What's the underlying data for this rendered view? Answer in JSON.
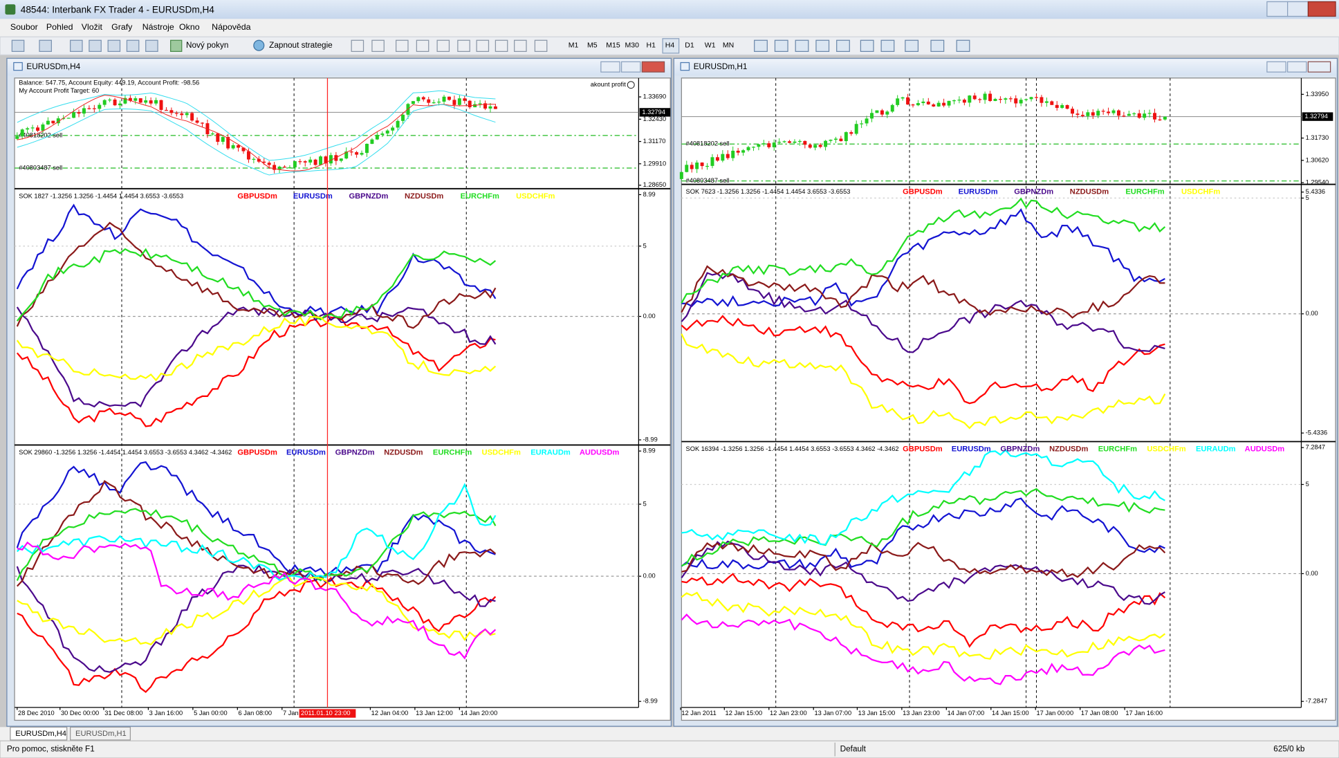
{
  "window": {
    "title": "48544: Interbank FX Trader 4 - EURUSDm,H4"
  },
  "menu": [
    "Soubor",
    "Pohled",
    "Vložit",
    "Grafy",
    "Nástroje",
    "Okno",
    "Nápověda"
  ],
  "toolbar": {
    "new_order": "Nový pokyn",
    "strategy": "Zapnout strategie",
    "timeframes": [
      "M1",
      "M5",
      "M15",
      "M30",
      "H1",
      "H4",
      "D1",
      "W1",
      "MN"
    ]
  },
  "charts": [
    {
      "title": "EURUSDm,H4",
      "price_panel": {
        "account": [
          "Balance: 547.75, Account Equity: 449.19, Account Profit: -98.56",
          "My Account Profit Target: 60"
        ],
        "indicator": "akount profit",
        "orders": [
          "#40818202 sell",
          "#40803487 sell"
        ],
        "scale": [
          "1.33690",
          "1.32430",
          "1.31170",
          "1.29910",
          "1.28650"
        ],
        "current": "1.32794"
      },
      "indicators": [
        {
          "header": "SOK 1827 -1.3256 1.3256 -1.4454 1.4454 3.6553 -3.6553",
          "legend": [
            {
              "name": "GBPUSDm",
              "color": "#ff0000"
            },
            {
              "name": "EURUSDm",
              "color": "#1414d2"
            },
            {
              "name": "GBPNZDm",
              "color": "#4b0a8c"
            },
            {
              "name": "NZDUSDm",
              "color": "#8b1a1a"
            },
            {
              "name": "EURCHFm",
              "color": "#22dd22"
            },
            {
              "name": "USDCHFm",
              "color": "#ffff00"
            }
          ],
          "scale": [
            "8.99",
            "5",
            "0.00",
            "-8.99"
          ]
        },
        {
          "header": "SOK 29860 -1.3256 1.3256 -1.4454 1.4454 3.6553 -3.6553 4.3462 -4.3462",
          "legend": [
            {
              "name": "GBPUSDm",
              "color": "#ff0000"
            },
            {
              "name": "EURUSDm",
              "color": "#1414d2"
            },
            {
              "name": "GBPNZDm",
              "color": "#4b0a8c"
            },
            {
              "name": "NZDUSDm",
              "color": "#8b1a1a"
            },
            {
              "name": "EURCHFm",
              "color": "#22dd22"
            },
            {
              "name": "USDCHFm",
              "color": "#ffff00"
            },
            {
              "name": "EURAUDm",
              "color": "#00ffff"
            },
            {
              "name": "AUDUSDm",
              "color": "#ff00ff"
            }
          ],
          "scale": [
            "8.99",
            "5",
            "0.00",
            "-8.99"
          ]
        }
      ],
      "time_axis": [
        "28 Dec 2010",
        "30 Dec 00:00",
        "31 Dec 08:00",
        "3 Jan 16:00",
        "5 Jan 00:00",
        "6 Jan 08:00",
        "7 Jan",
        "12 Jan 04:00",
        "13 Jan 12:00",
        "14 Jan 20:00"
      ],
      "cursor_time": "2011.01.10 23:00"
    },
    {
      "title": "EURUSDm,H1",
      "price_panel": {
        "orders": [
          "#40818202 sell",
          "#40803487 sell"
        ],
        "scale": [
          "1.33950",
          "1.31730",
          "1.30620",
          "1.29540"
        ],
        "current": "1.32794"
      },
      "indicators": [
        {
          "header": "SOK 7623 -1.3256 1.3256 -1.4454 1.4454 3.6553 -3.6553",
          "legend": [
            {
              "name": "GBPUSDm",
              "color": "#ff0000"
            },
            {
              "name": "EURUSDm",
              "color": "#1414d2"
            },
            {
              "name": "GBPNZDm",
              "color": "#4b0a8c"
            },
            {
              "name": "NZDUSDm",
              "color": "#8b1a1a"
            },
            {
              "name": "EURCHFm",
              "color": "#22dd22"
            },
            {
              "name": "USDCHFm",
              "color": "#ffff00"
            }
          ],
          "scale": [
            "5.4336",
            "5",
            "0.00",
            "-5.4336"
          ]
        },
        {
          "header": "SOK 16394 -1.3256 1.3256 -1.4454 1.4454 3.6553 -3.6553 4.3462 -4.3462",
          "legend": [
            {
              "name": "GBPUSDm",
              "color": "#ff0000"
            },
            {
              "name": "EURUSDm",
              "color": "#1414d2"
            },
            {
              "name": "GBPNZDm",
              "color": "#4b0a8c"
            },
            {
              "name": "NZDUSDm",
              "color": "#8b1a1a"
            },
            {
              "name": "EURCHFm",
              "color": "#22dd22"
            },
            {
              "name": "USDCHFm",
              "color": "#ffff00"
            },
            {
              "name": "EURAUDm",
              "color": "#00ffff"
            },
            {
              "name": "AUDUSDm",
              "color": "#ff00ff"
            }
          ],
          "scale": [
            "7.2847",
            "5",
            "0.00",
            "-7.2847"
          ]
        }
      ],
      "time_axis": [
        "12 Jan 2011",
        "12 Jan 15:00",
        "12 Jan 23:00",
        "13 Jan 07:00",
        "13 Jan 15:00",
        "13 Jan 23:00",
        "14 Jan 07:00",
        "14 Jan 15:00",
        "17 Jan 00:00",
        "17 Jan 08:00",
        "17 Jan 16:00"
      ]
    }
  ],
  "tabs": [
    "EURUSDm,H4",
    "EURUSDm,H1"
  ],
  "status": {
    "help": "Pro pomoc, stiskněte F1",
    "profile": "Default",
    "traffic": "625/0 kb"
  }
}
